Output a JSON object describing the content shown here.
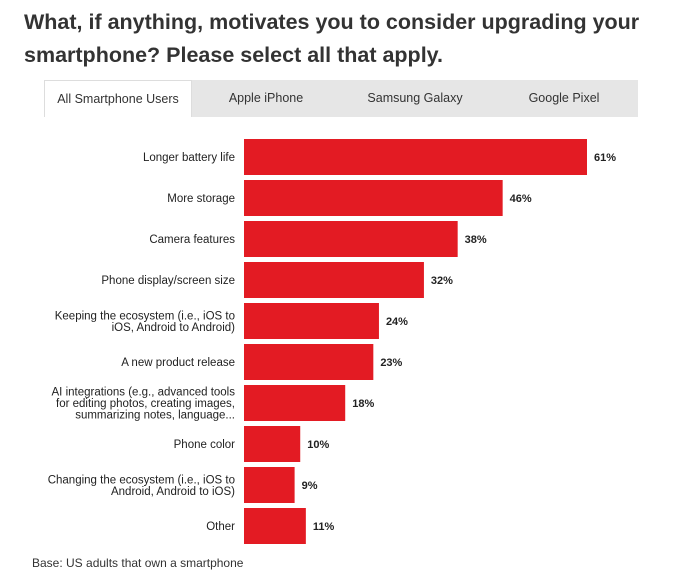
{
  "title": "What, if anything, motivates you to consider upgrading your smartphone? Please select all that apply.",
  "tabs": [
    {
      "label": "All Smartphone Users",
      "active": true
    },
    {
      "label": "Apple iPhone",
      "active": false
    },
    {
      "label": "Samsung Galaxy",
      "active": false
    },
    {
      "label": "Google Pixel",
      "active": false
    }
  ],
  "footnote": "Base: US adults that own a smartphone",
  "colors": {
    "bar": "#e31b23",
    "tab_bg": "#e6e6e6",
    "active_tab_bg": "#ffffff"
  },
  "chart_data": {
    "type": "bar",
    "orientation": "horizontal",
    "categories": [
      [
        "Longer battery life"
      ],
      [
        "More storage"
      ],
      [
        "Camera features"
      ],
      [
        "Phone display/screen size"
      ],
      [
        "Keeping the ecosystem (i.e., iOS to",
        "iOS, Android to Android)"
      ],
      [
        "A new product release"
      ],
      [
        "AI integrations (e.g., advanced tools",
        "for editing photos, creating images,",
        "summarizing notes, language..."
      ],
      [
        "Phone color"
      ],
      [
        "Changing the ecosystem (i.e., iOS to",
        "Android, Android to iOS)"
      ],
      [
        "Other"
      ]
    ],
    "values": [
      61,
      46,
      38,
      32,
      24,
      23,
      18,
      10,
      9,
      11
    ],
    "value_labels": [
      "61%",
      "46%",
      "38%",
      "32%",
      "24%",
      "23%",
      "18%",
      "10%",
      "9%",
      "11%"
    ],
    "title": "",
    "xlabel": "",
    "ylabel": "",
    "xlim": [
      0,
      63
    ],
    "grid": false,
    "legend": "none"
  }
}
